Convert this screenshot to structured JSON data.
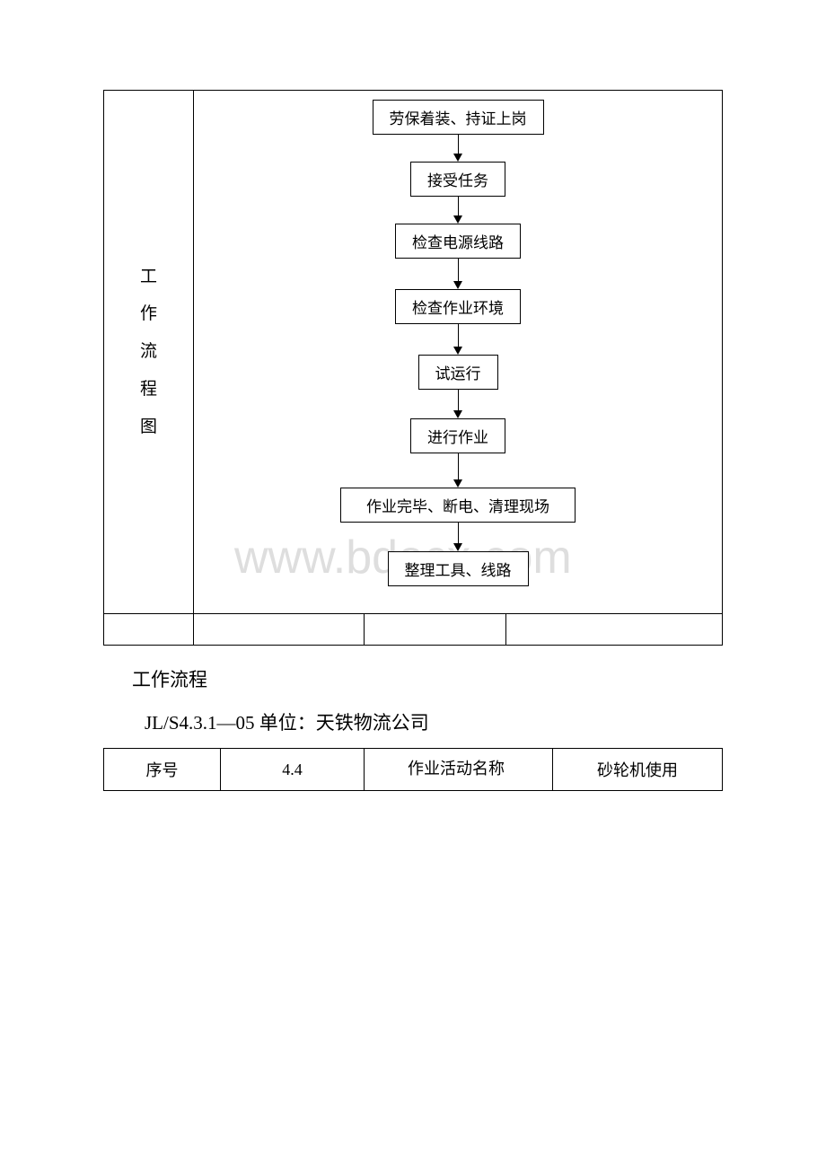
{
  "flowchart": {
    "vertical_label": "工\n作\n流\n程\n图",
    "nodes": [
      {
        "label": "劳保着装、持证上岗",
        "width": "normal"
      },
      {
        "label": "接受任务",
        "width": "normal"
      },
      {
        "label": "检查电源线路",
        "width": "normal"
      },
      {
        "label": "检查作业环境",
        "width": "normal"
      },
      {
        "label": "试运行",
        "width": "normal"
      },
      {
        "label": "进行作业",
        "width": "normal"
      },
      {
        "label": "作业完毕、断电、清理现场",
        "width": "wide"
      },
      {
        "label": "整理工具、线路",
        "width": "normal"
      }
    ],
    "arrow_heights": [
      30,
      30,
      34,
      34,
      32,
      38,
      32
    ],
    "colors": {
      "border": "#000000",
      "background": "#ffffff",
      "text": "#000000",
      "watermark": "#dedede"
    },
    "font_size_box": 17,
    "font_size_vlabel": 19
  },
  "watermark_text": "www.bdocx.com",
  "below": {
    "line1": "工作流程",
    "line2_code": "JL/S4.3.1—05",
    "line2_rest": " 单位：天铁物流公司"
  },
  "info_table": {
    "c1": "序号",
    "c2": "4.4",
    "c3_label": "作业活动名称",
    "c4": "砂轮机使用"
  }
}
